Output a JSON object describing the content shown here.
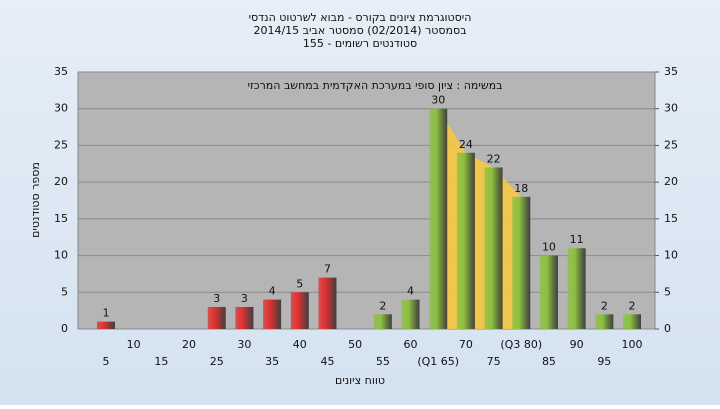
{
  "chart_data": {
    "type": "bar",
    "title": "היסטוגרמת ציונים בקורס - מבוא לשרטוט הנדסי",
    "subtitle": "בסמסטר  (02/2014)  סמסטר אביב 2014/15",
    "subtitle2": "סטודנטים רשומים - 155",
    "annotation": "במשימה : ציון סופי במערכת האקדמית במחשב המרכזי",
    "x_label": "טווח ציונים",
    "y_label": "מספר סטודנטים",
    "categories": [
      "5",
      "10",
      "15",
      "20",
      "25",
      "30",
      "35",
      "40",
      "45",
      "50",
      "55",
      "60",
      "(Q1 65)",
      "70",
      "75",
      "(Q3 80)",
      "85",
      "90",
      "95",
      "100"
    ],
    "values": [
      1,
      0,
      0,
      0,
      3,
      3,
      4,
      5,
      7,
      0,
      2,
      4,
      30,
      24,
      22,
      18,
      10,
      11,
      2,
      2
    ],
    "colors": [
      "#e03030",
      "#e03030",
      "#e03030",
      "#e03030",
      "#e03030",
      "#e03030",
      "#e03030",
      "#e03030",
      "#e03030",
      "#e03030",
      "#8cc040",
      "#8cc040",
      "#8cc040",
      "#8cc040",
      "#8cc040",
      "#8cc040",
      "#8cc040",
      "#8cc040",
      "#8cc040",
      "#8cc040"
    ],
    "highlight_color": "#f5c842",
    "ylim": [
      0,
      35
    ],
    "yticks": [
      0,
      5,
      10,
      15,
      20,
      25,
      30,
      35
    ],
    "y2lim": [
      0,
      35
    ],
    "y2ticks": [
      0,
      5,
      10,
      15,
      20,
      25,
      30,
      35
    ],
    "grid": true
  }
}
